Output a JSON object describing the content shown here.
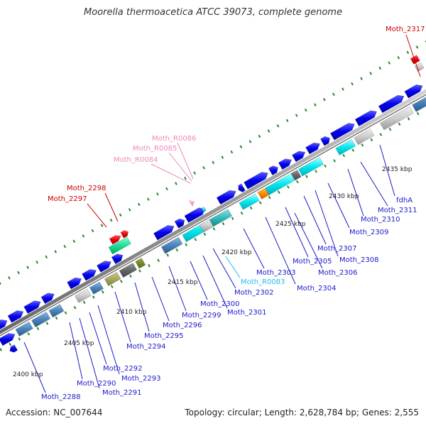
{
  "title": "Moorella thermoacetica ATCC 39073, complete genome",
  "footer": {
    "accession": "Accession: NC_007644",
    "topology": "Topology: circular; Length: 2,628,784 bp; Genes: 2,555"
  },
  "scale_labels": [
    "2400 kbp",
    "2405 kbp",
    "2410 kbp",
    "2415 kbp",
    "2420 kbp",
    "2425 kbp",
    "2430 kbp",
    "2435 kbp"
  ],
  "colors": {
    "cds": "#0000ee",
    "trna": "#dd0000",
    "rrna": "#00aa66",
    "ncrna": "#ff99cc",
    "label_blue": "#1a1acc",
    "label_red": "#cc0000",
    "label_pink": "#ee88bb",
    "label_cyan": "#22bbee",
    "backbone": "#999999",
    "tick": "#228822"
  },
  "gene_labels": [
    {
      "text": "Moth_2317",
      "type": "red"
    },
    {
      "text": "Moth_R0086",
      "type": "pink"
    },
    {
      "text": "Moth_R0085",
      "type": "pink"
    },
    {
      "text": "Moth_R0084",
      "type": "pink"
    },
    {
      "text": "Moth_2298",
      "type": "red"
    },
    {
      "text": "Moth_2297",
      "type": "red"
    },
    {
      "text": "Moth_R0083",
      "type": "cyan"
    },
    {
      "text": "fdhA",
      "type": "blue"
    },
    {
      "text": "Moth_2311",
      "type": "blue"
    },
    {
      "text": "Moth_2310",
      "type": "blue"
    },
    {
      "text": "Moth_2309",
      "type": "blue"
    },
    {
      "text": "Moth_2307",
      "type": "blue"
    },
    {
      "text": "Moth_2308",
      "type": "blue"
    },
    {
      "text": "Moth_2305",
      "type": "blue"
    },
    {
      "text": "Moth_2306",
      "type": "blue"
    },
    {
      "text": "Moth_2303",
      "type": "blue"
    },
    {
      "text": "Moth_2304",
      "type": "blue"
    },
    {
      "text": "Moth_2302",
      "type": "blue"
    },
    {
      "text": "Moth_2300",
      "type": "blue"
    },
    {
      "text": "Moth_2301",
      "type": "blue"
    },
    {
      "text": "Moth_2299",
      "type": "blue"
    },
    {
      "text": "Moth_2296",
      "type": "blue"
    },
    {
      "text": "Moth_2295",
      "type": "blue"
    },
    {
      "text": "Moth_2294",
      "type": "blue"
    },
    {
      "text": "Moth_2292",
      "type": "blue"
    },
    {
      "text": "Moth_2293",
      "type": "blue"
    },
    {
      "text": "Moth_2290",
      "type": "blue"
    },
    {
      "text": "Moth_2291",
      "type": "blue"
    },
    {
      "text": "Moth_2288",
      "type": "blue"
    }
  ]
}
